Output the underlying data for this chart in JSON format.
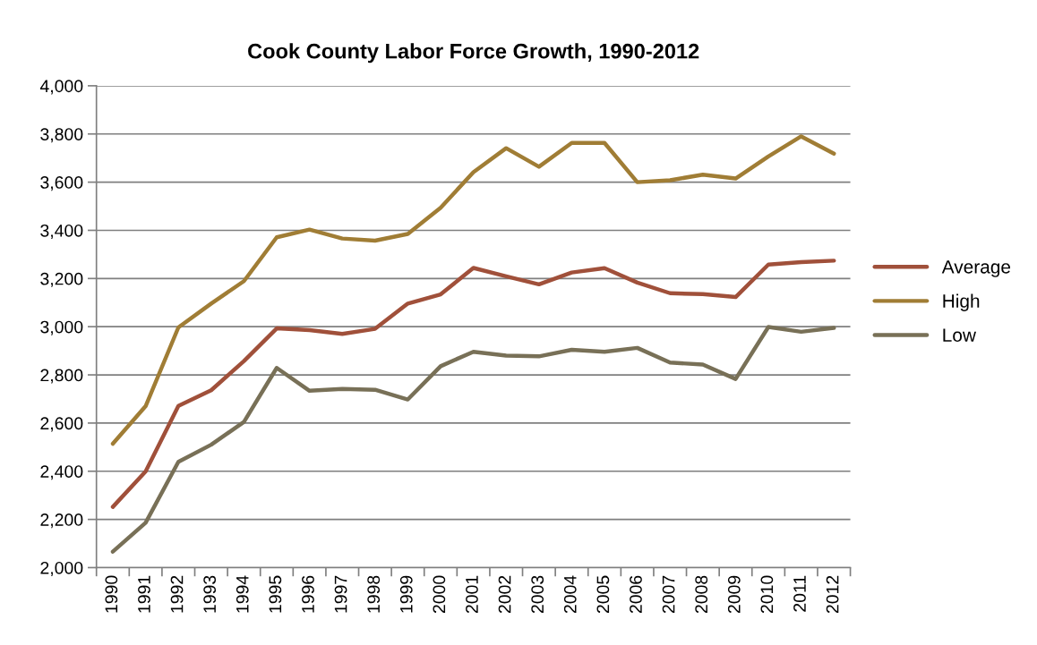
{
  "chart_data": {
    "type": "line",
    "title": "Cook County Labor Force Growth, 1990-2012",
    "categories": [
      "1990",
      "1991",
      "1992",
      "1993",
      "1994",
      "1995",
      "1996",
      "1997",
      "1998",
      "1999",
      "2000",
      "2001",
      "2002",
      "2003",
      "2004",
      "2005",
      "2006",
      "2007",
      "2008",
      "2009",
      "2010",
      "2011",
      "2012"
    ],
    "series": [
      {
        "name": "Average",
        "color": "#a0503a",
        "values": [
          2252,
          2399,
          2671,
          2736,
          2857,
          2993,
          2986,
          2970,
          2991,
          3096,
          3134,
          3244,
          3209,
          3176,
          3225,
          3243,
          3183,
          3139,
          3135,
          3123,
          3258,
          3268,
          3274
        ]
      },
      {
        "name": "High",
        "color": "#a07d35",
        "values": [
          2514,
          2670,
          2997,
          3096,
          3189,
          3371,
          3403,
          3366,
          3357,
          3385,
          3494,
          3641,
          3741,
          3664,
          3763,
          3763,
          3600,
          3608,
          3631,
          3615,
          3707,
          3790,
          3718
        ]
      },
      {
        "name": "Low",
        "color": "#787057",
        "values": [
          2066,
          2186,
          2439,
          2510,
          2605,
          2829,
          2734,
          2742,
          2738,
          2698,
          2836,
          2896,
          2880,
          2877,
          2904,
          2896,
          2912,
          2851,
          2843,
          2783,
          2999,
          2979,
          2995
        ]
      }
    ],
    "ylim": [
      2000,
      4000
    ],
    "yticks": [
      {
        "value": 2000,
        "label": "2,000"
      },
      {
        "value": 2200,
        "label": "2,200"
      },
      {
        "value": 2400,
        "label": "2,400"
      },
      {
        "value": 2600,
        "label": "2,600"
      },
      {
        "value": 2800,
        "label": "2,800"
      },
      {
        "value": 3000,
        "label": "3,000"
      },
      {
        "value": 3200,
        "label": "3,200"
      },
      {
        "value": 3400,
        "label": "3,400"
      },
      {
        "value": 3600,
        "label": "3,600"
      },
      {
        "value": 3800,
        "label": "3,800"
      },
      {
        "value": 4000,
        "label": "4,000"
      }
    ],
    "grid": "y",
    "legend": "right",
    "marker": "none",
    "line_style": "solid"
  }
}
